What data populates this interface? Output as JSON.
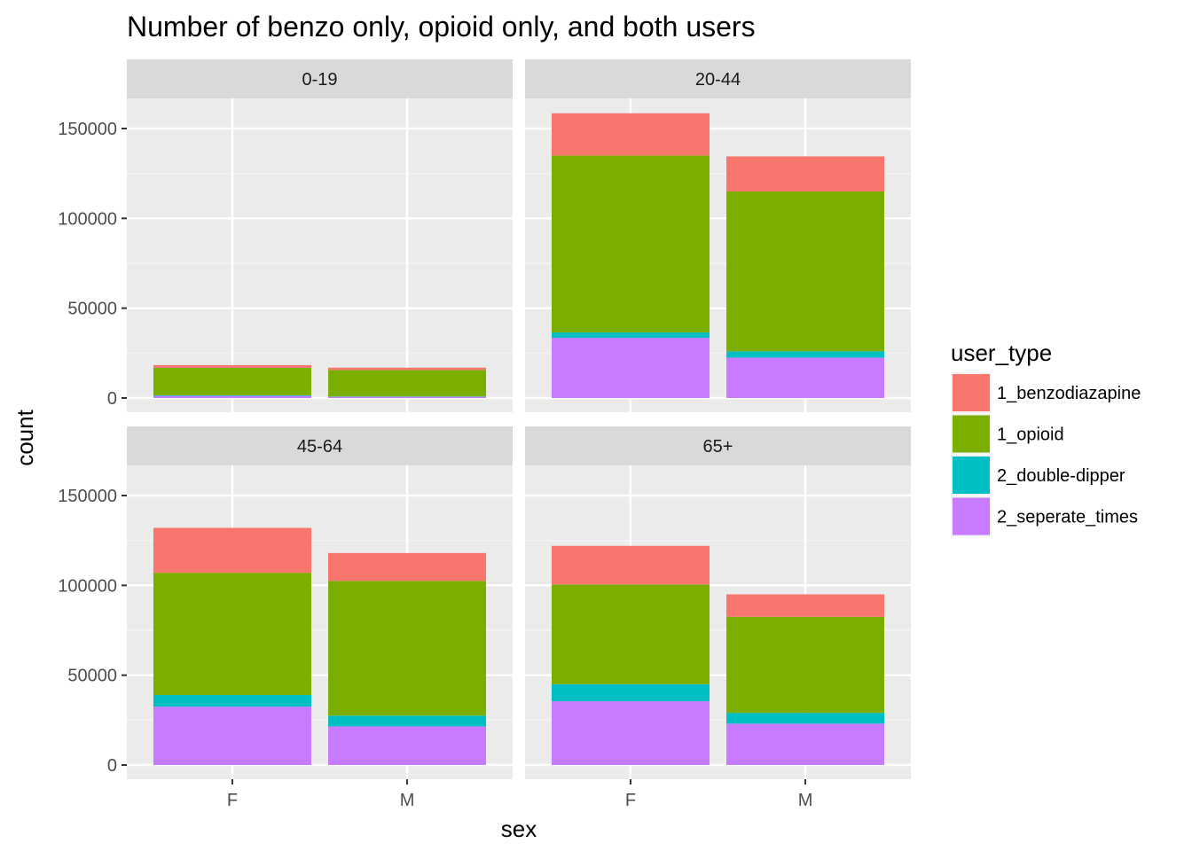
{
  "chart_data": {
    "type": "bar",
    "stacked": true,
    "faceted": true,
    "title": "Number of benzo only, opioid only, and both users",
    "xlabel": "sex",
    "ylabel": "count",
    "categories": [
      "F",
      "M"
    ],
    "ylim": [
      0,
      175000
    ],
    "yticks": [
      0,
      50000,
      100000,
      150000
    ],
    "ytick_labels": [
      "0",
      "50000",
      "100000",
      "150000"
    ],
    "grid": true,
    "legend": {
      "title": "user_type",
      "position": "right",
      "entries": [
        "1_benzodiazapine",
        "1_opioid",
        "2_double-dipper",
        "2_seperate_times"
      ]
    },
    "series_colors": {
      "1_benzodiazapine": "#F8766D",
      "1_opioid": "#7CAE00",
      "2_double-dipper": "#00BFC4",
      "2_seperate_times": "#C77CFF"
    },
    "stack_order_bottom_to_top": [
      "2_seperate_times",
      "2_double-dipper",
      "1_opioid",
      "1_benzodiazapine"
    ],
    "facets": [
      {
        "label": "0-19",
        "bars": [
          {
            "x": "F",
            "values": {
              "2_seperate_times": 1200,
              "2_double-dipper": 300,
              "1_opioid": 15300,
              "1_benzodiazapine": 1500
            }
          },
          {
            "x": "M",
            "values": {
              "2_seperate_times": 700,
              "2_double-dipper": 200,
              "1_opioid": 14700,
              "1_benzodiazapine": 1300
            }
          }
        ]
      },
      {
        "label": "20-44",
        "bars": [
          {
            "x": "F",
            "values": {
              "2_seperate_times": 33500,
              "2_double-dipper": 3000,
              "1_opioid": 98500,
              "1_benzodiazapine": 23500
            }
          },
          {
            "x": "M",
            "values": {
              "2_seperate_times": 22500,
              "2_double-dipper": 3500,
              "1_opioid": 89000,
              "1_benzodiazapine": 19500
            }
          }
        ]
      },
      {
        "label": "45-64",
        "bars": [
          {
            "x": "F",
            "values": {
              "2_seperate_times": 32500,
              "2_double-dipper": 6500,
              "1_opioid": 68000,
              "1_benzodiazapine": 25000
            }
          },
          {
            "x": "M",
            "values": {
              "2_seperate_times": 21500,
              "2_double-dipper": 6000,
              "1_opioid": 75000,
              "1_benzodiazapine": 15500
            }
          }
        ]
      },
      {
        "label": "65+",
        "bars": [
          {
            "x": "F",
            "values": {
              "2_seperate_times": 35500,
              "2_double-dipper": 9500,
              "1_opioid": 55500,
              "1_benzodiazapine": 21500
            }
          },
          {
            "x": "M",
            "values": {
              "2_seperate_times": 23000,
              "2_double-dipper": 6000,
              "1_opioid": 53500,
              "1_benzodiazapine": 12500
            }
          }
        ]
      }
    ]
  }
}
